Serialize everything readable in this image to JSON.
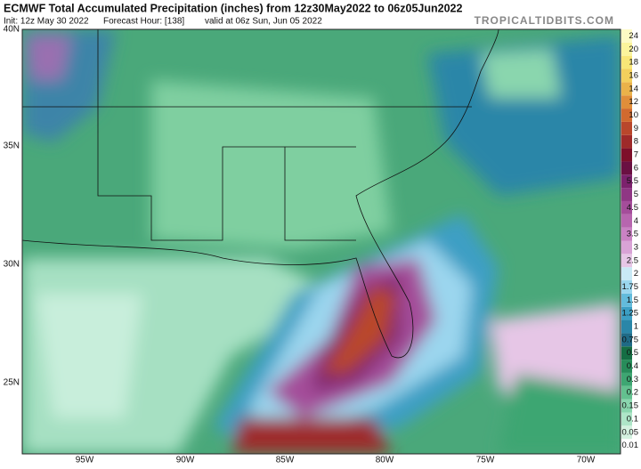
{
  "header": {
    "title": "ECMWF Total Accumulated Precipitation (inches) from 12z30May2022 to 06z05Jun2022",
    "init": "Init: 12z May 30 2022",
    "forecast_hour": "Forecast Hour: [138]",
    "valid": "valid at 06z Sun, Jun 05 2022",
    "source": "TROPICALTIDBITS.COM"
  },
  "map": {
    "lat_labels": [
      "40N",
      "35N",
      "30N",
      "25N"
    ],
    "lon_labels": [
      "95W",
      "90W",
      "85W",
      "80W",
      "75W",
      "70W"
    ]
  },
  "colorbar": {
    "levels": [
      0.01,
      0.05,
      0.1,
      0.15,
      0.2,
      0.3,
      0.4,
      0.5,
      0.75,
      1,
      1.25,
      1.5,
      1.75,
      2,
      2.5,
      3,
      3.5,
      4,
      4.5,
      5,
      5.5,
      6,
      7,
      8,
      9,
      10,
      12,
      14,
      16,
      18,
      20,
      24
    ],
    "colors": [
      "#ffffff",
      "#d4f2e0",
      "#aee6c8",
      "#8ad6ae",
      "#63c08f",
      "#3ea672",
      "#278c5a",
      "#156e44",
      "#1f6a86",
      "#2a86a8",
      "#3c9fc4",
      "#63bbdb",
      "#9bd6ee",
      "#c9e9f5",
      "#e6c6e6",
      "#d9a3d6",
      "#c982c3",
      "#b766af",
      "#a44d9a",
      "#8f3784",
      "#7c226d",
      "#6a1042",
      "#7e0f2a",
      "#9e2a2a",
      "#b9472c",
      "#d16a2f",
      "#e08e3a",
      "#eab24a",
      "#f3cf5d",
      "#f8e677",
      "#fbf49c",
      "#fdfac4"
    ]
  }
}
